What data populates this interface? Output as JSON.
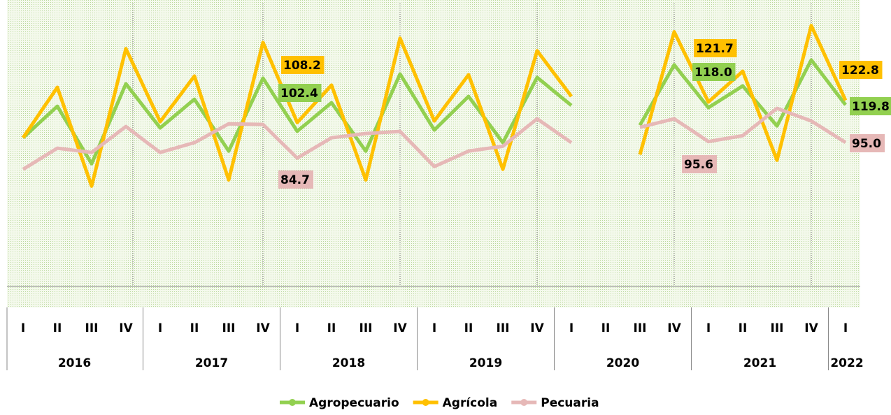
{
  "chart_data": {
    "type": "line",
    "categories": [
      "I",
      "II",
      "III",
      "IV",
      "I",
      "II",
      "III",
      "IV",
      "I",
      "II",
      "III",
      "IV",
      "I",
      "II",
      "III",
      "IV",
      "I",
      "II",
      "III",
      "IV",
      "I",
      "II",
      "III",
      "IV",
      "I"
    ],
    "years": [
      "2016",
      "2017",
      "2018",
      "2019",
      "2020",
      "2021",
      "2022"
    ],
    "ylim": [
      0,
      189
    ],
    "series": [
      {
        "name": "Agropecuario",
        "color": "#92d050",
        "values": [
          98.1,
          118.9,
          81.0,
          133.7,
          104.6,
          123.5,
          89.3,
          137.4,
          102.4,
          121.2,
          89.3,
          140.2,
          103.2,
          125.4,
          94.9,
          137.9,
          119.4,
          null,
          106.4,
          146.2,
          118.0,
          132.3,
          105.9,
          149.4,
          119.8
        ],
        "value_labels": [
          null,
          null,
          null,
          null,
          null,
          null,
          null,
          null,
          "102.4",
          null,
          null,
          null,
          null,
          null,
          null,
          null,
          null,
          null,
          null,
          null,
          "118.0",
          null,
          null,
          null,
          "119.8"
        ]
      },
      {
        "name": "Agrícola",
        "color": "#ffc000",
        "values": [
          98.1,
          131.4,
          66.2,
          156.9,
          108.7,
          138.8,
          70.3,
          161.0,
          108.2,
          132.8,
          70.3,
          163.8,
          109.2,
          139.7,
          77.3,
          155.5,
          125.4,
          null,
          87.0,
          168.0,
          121.7,
          142.0,
          83.3,
          172.1,
          122.8
        ],
        "value_labels": [
          null,
          null,
          null,
          null,
          null,
          null,
          null,
          null,
          "108.2",
          null,
          null,
          null,
          null,
          null,
          null,
          null,
          null,
          null,
          null,
          null,
          "121.7",
          null,
          null,
          null,
          "122.8"
        ]
      },
      {
        "name": "Pecuaria",
        "color": "#e6b8b7",
        "values": [
          77.3,
          91.2,
          88.4,
          105.5,
          88.4,
          94.9,
          107.3,
          106.9,
          84.7,
          98.1,
          100.9,
          102.3,
          79.1,
          89.3,
          92.5,
          110.6,
          94.9,
          null,
          105.0,
          110.6,
          95.6,
          99.5,
          117.5,
          109.2,
          95.0
        ],
        "value_labels": [
          null,
          null,
          null,
          null,
          null,
          null,
          null,
          null,
          "84.7",
          null,
          null,
          null,
          null,
          null,
          null,
          null,
          null,
          null,
          null,
          null,
          "95.6",
          null,
          null,
          null,
          "95.0"
        ]
      }
    ]
  }
}
